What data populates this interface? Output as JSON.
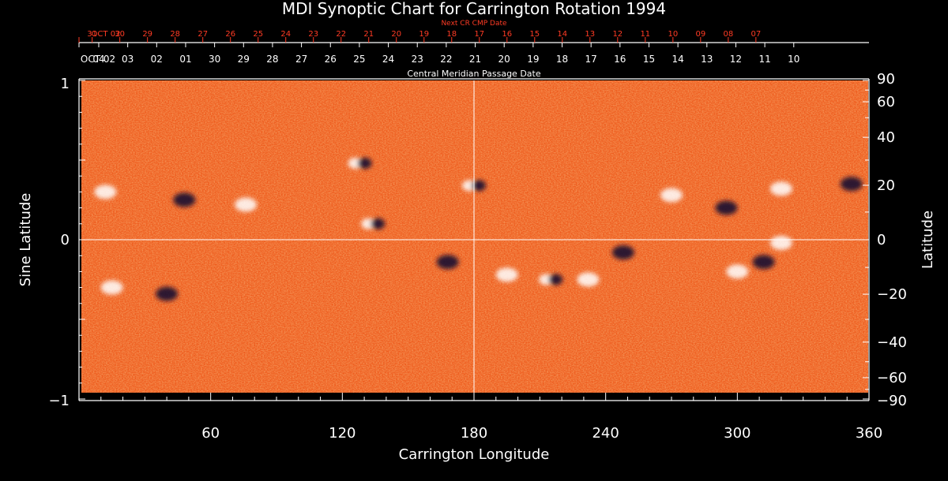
{
  "chart_data": {
    "type": "heatmap",
    "title": "MDI Synoptic Chart for Carrington Rotation 1994",
    "xlabel": "Carrington Longitude",
    "ylabel_left": "Sine Latitude",
    "ylabel_right": "Latitude",
    "x_range": [
      0,
      360
    ],
    "y_range": [
      -1,
      1
    ],
    "x_ticks": [
      "60",
      "120",
      "180",
      "240",
      "300",
      "360"
    ],
    "y_ticks_left": [
      "1",
      "0",
      "−1"
    ],
    "y_ticks_right": [
      "90",
      "60",
      "40",
      "20",
      "0",
      "−20",
      "−40",
      "−60",
      "−90"
    ],
    "top_axis_label": "Central Meridian Passage Date",
    "top_axis_dates": [
      "OCT 02",
      "04",
      "03",
      "02",
      "01",
      "30",
      "29",
      "28",
      "27",
      "26",
      "25",
      "24",
      "23",
      "22",
      "21",
      "20",
      "19",
      "18",
      "17",
      "16",
      "15",
      "14",
      "13",
      "12",
      "11",
      "10"
    ],
    "next_axis_label": "Next CR CMP Date",
    "next_axis_dates": [
      "OCT 02",
      "31",
      "30",
      "29",
      "28",
      "27",
      "26",
      "25",
      "24",
      "23",
      "22",
      "21",
      "20",
      "19",
      "18",
      "17",
      "16",
      "15",
      "14",
      "13",
      "12",
      "11",
      "10",
      "09",
      "08",
      "07"
    ],
    "grid": "crosshair at longitude 180 and latitude 0",
    "colors": {
      "background_field": "#ef5a1c",
      "positive": "#ffffff",
      "negative": "#1a0830",
      "axes": "#ffffff",
      "next_cr_axis": "#ff3b24"
    },
    "active_regions": [
      {
        "lon": 12,
        "sinlat": 0.3,
        "polarity": "positive"
      },
      {
        "lon": 48,
        "sinlat": 0.25,
        "polarity": "negative"
      },
      {
        "lon": 76,
        "sinlat": 0.22,
        "polarity": "positive"
      },
      {
        "lon": 128,
        "sinlat": 0.48,
        "polarity": "mixed"
      },
      {
        "lon": 134,
        "sinlat": 0.1,
        "polarity": "mixed"
      },
      {
        "lon": 180,
        "sinlat": 0.34,
        "polarity": "mixed"
      },
      {
        "lon": 270,
        "sinlat": 0.28,
        "polarity": "positive"
      },
      {
        "lon": 295,
        "sinlat": 0.2,
        "polarity": "negative"
      },
      {
        "lon": 320,
        "sinlat": 0.32,
        "polarity": "positive"
      },
      {
        "lon": 352,
        "sinlat": 0.35,
        "polarity": "negative"
      },
      {
        "lon": 15,
        "sinlat": -0.3,
        "polarity": "positive"
      },
      {
        "lon": 40,
        "sinlat": -0.34,
        "polarity": "negative"
      },
      {
        "lon": 168,
        "sinlat": -0.14,
        "polarity": "negative"
      },
      {
        "lon": 195,
        "sinlat": -0.22,
        "polarity": "positive"
      },
      {
        "lon": 215,
        "sinlat": -0.25,
        "polarity": "mixed"
      },
      {
        "lon": 232,
        "sinlat": -0.25,
        "polarity": "positive"
      },
      {
        "lon": 248,
        "sinlat": -0.08,
        "polarity": "negative"
      },
      {
        "lon": 300,
        "sinlat": -0.2,
        "polarity": "positive"
      },
      {
        "lon": 312,
        "sinlat": -0.14,
        "polarity": "negative"
      },
      {
        "lon": 320,
        "sinlat": -0.02,
        "polarity": "positive"
      }
    ]
  }
}
